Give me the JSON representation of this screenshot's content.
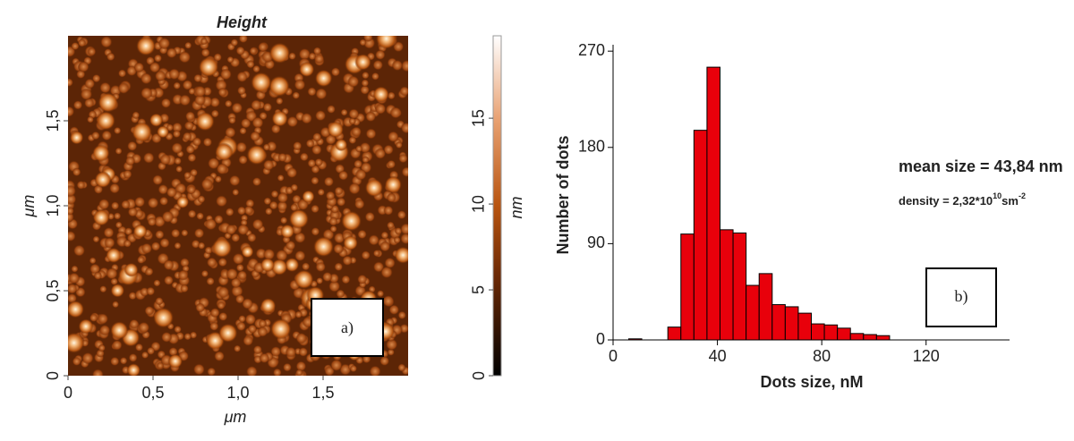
{
  "chart_data": [
    {
      "type": "image",
      "title": "Height",
      "xlabel": "μm",
      "ylabel": "μm",
      "xlim": [
        0,
        2
      ],
      "ylim": [
        0,
        2
      ],
      "xticks": [
        0,
        {
          "value": 0.5,
          "label": "0,5"
        },
        {
          "value": 1.0,
          "label": "1,0"
        },
        {
          "value": 1.5,
          "label": "1,5"
        }
      ],
      "yticks": [
        0,
        {
          "value": 0.5,
          "label": "0,5"
        },
        {
          "value": 1.0,
          "label": "1,0"
        },
        {
          "value": 1.5,
          "label": "1,5"
        }
      ],
      "colorbar": {
        "label": "nm",
        "lim": [
          0,
          19.8
        ],
        "ticks": [
          0,
          5,
          10,
          15
        ]
      },
      "annotations": [
        "a)"
      ]
    },
    {
      "type": "histogram",
      "xlabel": "Dots size, nM",
      "ylabel": "Number of dots",
      "bins": [
        6,
        11,
        16,
        21,
        26,
        31,
        36,
        41,
        46,
        51,
        56,
        61,
        66,
        71,
        76,
        81,
        86,
        91,
        96,
        101,
        106
      ],
      "values": [
        1,
        0,
        0,
        12,
        99,
        196,
        255,
        103,
        100,
        51,
        62,
        33,
        31,
        25,
        15,
        14,
        11,
        6,
        5,
        4
      ],
      "color": "#e8000b",
      "xlim": [
        0,
        152
      ],
      "ylim": [
        0,
        276
      ],
      "xticks": [
        0,
        40,
        80,
        120
      ],
      "yticks": [
        0,
        90,
        180,
        270
      ],
      "annotations": [
        "mean size = 43,84 nm",
        "density = 2,32*10",
        "10",
        "sm",
        "-2",
        "b)"
      ]
    }
  ]
}
